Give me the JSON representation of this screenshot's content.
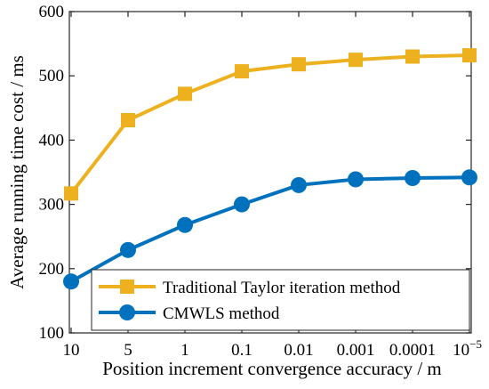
{
  "chart_data": {
    "type": "line",
    "title": "",
    "xlabel": "Position increment convergence accuracy / m",
    "ylabel": "Average running time cost / ms",
    "categories": [
      "10",
      "5",
      "1",
      "0.1",
      "0.01",
      "0.001",
      "0.0001",
      "10^-5"
    ],
    "ylim": [
      100,
      600
    ],
    "yticks": [
      100,
      200,
      300,
      400,
      500,
      600
    ],
    "grid": false,
    "legend_position": "bottom-right",
    "series": [
      {
        "name": "Traditional Taylor iteration method",
        "color": "#EDB120",
        "marker": "square",
        "values": [
          317,
          431,
          472,
          507,
          518,
          525,
          530,
          532
        ]
      },
      {
        "name": "CMWLS method",
        "color": "#0072BD",
        "marker": "circle",
        "values": [
          180,
          229,
          268,
          300,
          330,
          339,
          341,
          342
        ]
      }
    ]
  }
}
